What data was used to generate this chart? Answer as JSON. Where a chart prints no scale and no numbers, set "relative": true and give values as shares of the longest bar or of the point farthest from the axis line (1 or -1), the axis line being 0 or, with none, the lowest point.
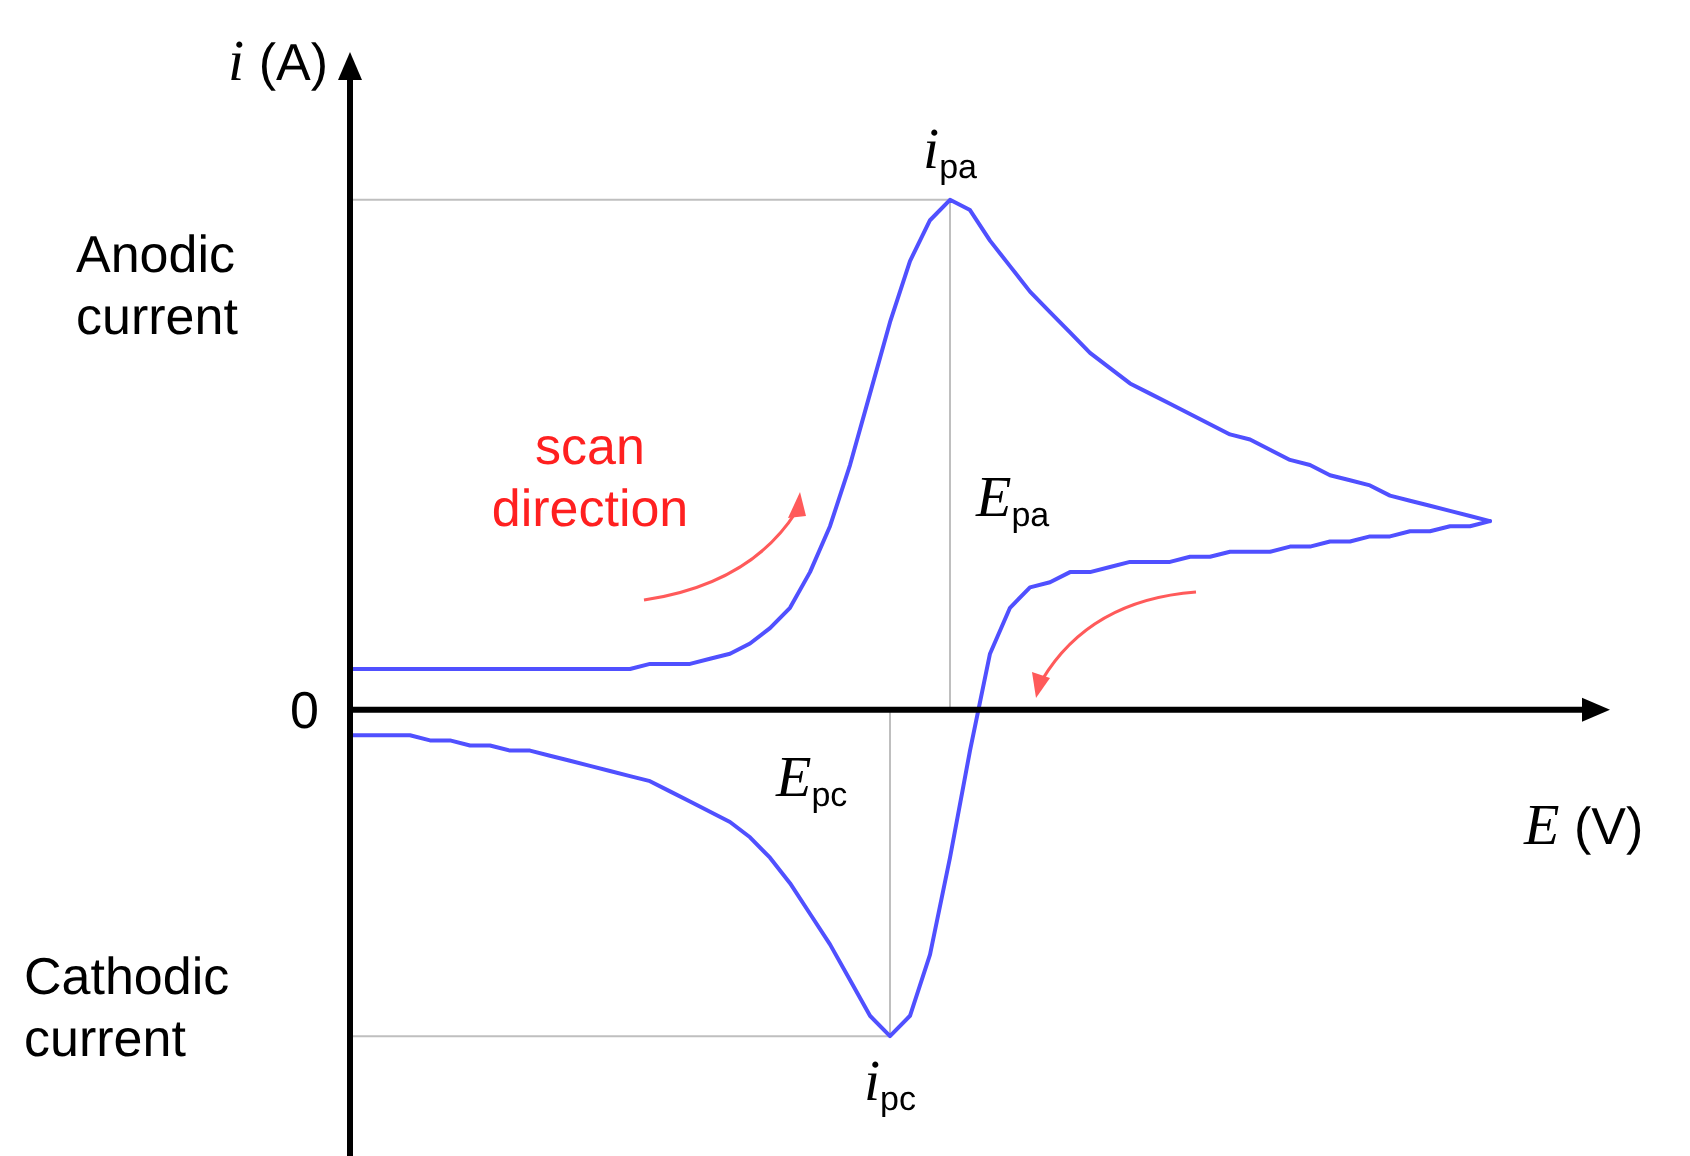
{
  "chart_data": {
    "type": "line",
    "relative": true,
    "xlabel": "E (V)",
    "ylabel": "i (A)",
    "categories": [
      null,
      null,
      null,
      null,
      null,
      null,
      null,
      null,
      null,
      null,
      null,
      null,
      null,
      null,
      null,
      null,
      null,
      null,
      null,
      null,
      null,
      null,
      null,
      null,
      null,
      null,
      null,
      null,
      null,
      null,
      null,
      null,
      null,
      null,
      null,
      null,
      null,
      null,
      null,
      null,
      null,
      null,
      null,
      null,
      null,
      null,
      null,
      null,
      null,
      null,
      null,
      null,
      null,
      null,
      null,
      null,
      null,
      null
    ],
    "series": [
      {
        "color": "#5050ff",
        "values": [
          0.08,
          0.08,
          0.08,
          0.08,
          0.08,
          0.08,
          0.08,
          0.08,
          0.08,
          0.08,
          0.08,
          0.08,
          0.08,
          0.08,
          0.08,
          0.09,
          0.09,
          0.09,
          0.1,
          0.11,
          0.13,
          0.16,
          0.2,
          0.27,
          0.36,
          0.48,
          0.62,
          0.76,
          0.88,
          0.96,
          1,
          0.98,
          0.92,
          0.87,
          0.82,
          0.78,
          0.74,
          0.7,
          0.67,
          0.64,
          0.62,
          0.6,
          0.58,
          0.56,
          0.54,
          0.53,
          0.51,
          0.49,
          0.48,
          0.46,
          0.45,
          0.44,
          0.42,
          0.41,
          0.4,
          0.39,
          0.38,
          0.37
        ]
      },
      {
        "color": "#5050ff",
        "values": [
          -0.05,
          -0.05,
          -0.05,
          -0.05,
          -0.06,
          -0.06,
          -0.07,
          -0.07,
          -0.08,
          -0.08,
          -0.09,
          -0.1,
          -0.11,
          -0.12,
          -0.13,
          -0.14,
          -0.16,
          -0.18,
          -0.2,
          -0.22,
          -0.25,
          -0.29,
          -0.34,
          -0.4,
          -0.46,
          -0.53,
          -0.6,
          -0.64,
          -0.6,
          -0.48,
          -0.29,
          -0.08,
          0.11,
          0.2,
          0.24,
          0.25,
          0.27,
          0.27,
          0.28,
          0.29,
          0.29,
          0.29,
          0.3,
          0.3,
          0.31,
          0.31,
          0.31,
          0.32,
          0.32,
          0.33,
          0.33,
          0.34,
          0.34,
          0.35,
          0.35,
          0.36,
          0.36,
          0.37
        ]
      }
    ],
    "ref_lines": [
      {
        "axis": "y",
        "value": 1,
        "label": "i$_{pa}$",
        "color": "#bfbfbf"
      },
      {
        "axis": "y",
        "value": -0.64,
        "label": "i$_{pc}$",
        "color": "#bfbfbf"
      }
    ],
    "annotations": [
      "Anodic current",
      "Cathodic current",
      "scan direction",
      "0",
      "E$_{pa}$",
      "E$_{pc}$"
    ]
  }
}
